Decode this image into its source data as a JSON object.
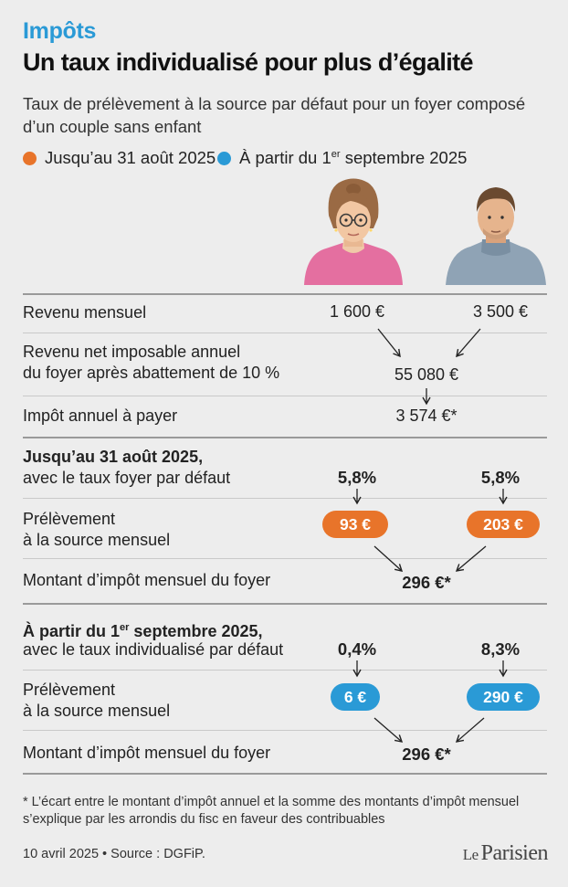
{
  "kicker": "Impôts",
  "headline": "Un taux individualisé pour plus d’égalité",
  "subtitle": "Taux de prélèvement à la source par défaut pour un foyer composé d’un couple sans enfant",
  "legend": {
    "item1": {
      "label": "Jusqu’au 31 août 2025",
      "color": "#e8742a"
    },
    "item2": {
      "label_pre": "À partir du 1",
      "label_sup": "er",
      "label_post": " septembre 2025",
      "color": "#2a9ad6"
    }
  },
  "people": {
    "woman": "woman-avatar",
    "man": "man-avatar"
  },
  "rows": {
    "revenu_mensuel": {
      "label": "Revenu mensuel",
      "woman": "1 600 €",
      "man": "3 500 €"
    },
    "revenu_net": {
      "label_line1": "Revenu net imposable annuel",
      "label_line2": "du foyer après abattement de 10 %",
      "value": "55 080 €"
    },
    "impot_annuel": {
      "label": "Impôt annuel à payer",
      "value": "3 574 €*"
    }
  },
  "section1": {
    "heading": "Jusqu’au 31 août 2025,",
    "subheading": "avec le taux foyer par défaut",
    "rate_woman": "5,8%",
    "rate_man": "5,8%",
    "prelevement_label_line1": "Prélèvement",
    "prelevement_label_line2": "à la source mensuel",
    "amount_woman": "93 €",
    "amount_man": "203 €",
    "total_label": "Montant d’impôt mensuel du foyer",
    "total": "296 €*"
  },
  "section2": {
    "heading_pre": "À partir du 1",
    "heading_sup": "er",
    "heading_post": " septembre 2025,",
    "subheading": "avec le taux individualisé par défaut",
    "rate_woman": "0,4%",
    "rate_man": "8,3%",
    "prelevement_label_line1": "Prélèvement",
    "prelevement_label_line2": "à la source mensuel",
    "amount_woman": "6 €",
    "amount_man": "290 €",
    "total_label": "Montant d’impôt mensuel du foyer",
    "total": "296 €*"
  },
  "footnote": "* L’écart entre le montant d’impôt annuel et la somme des montants d’impôt mensuel s’explique par les arrondis du fisc en faveur des contribuables",
  "source": "10 avril 2025 • Source : DGFiP.",
  "logo": {
    "le": "Le",
    "name": "Parisien"
  },
  "colors": {
    "orange": "#e8742a",
    "blue": "#2a9ad6",
    "background": "#ededed"
  }
}
